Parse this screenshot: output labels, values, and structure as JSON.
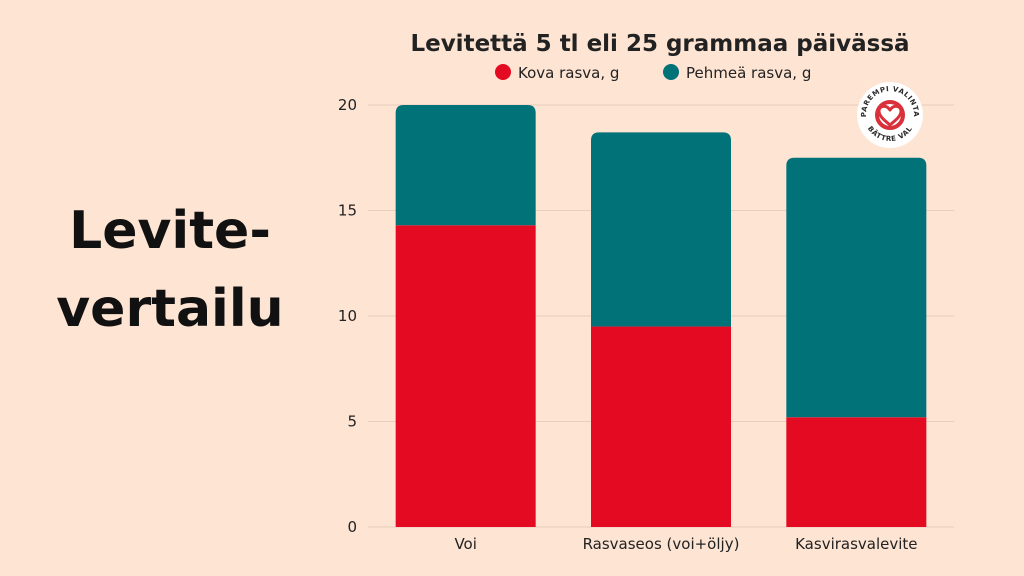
{
  "side_title": {
    "line1": "Levite-",
    "line2": "vertailu"
  },
  "logo": {
    "top_text": "PAREMPI VALINTA",
    "bottom_text": "BÄTTRE VAL",
    "icon": "heart-icon",
    "color": "#d9303c"
  },
  "colors": {
    "background": "#fde4d3",
    "hard_fat": "#e30a22",
    "soft_fat": "#007278",
    "grid": "#e9cdbd"
  },
  "chart_data": {
    "type": "bar",
    "stacked": true,
    "title": "Levitettä 5 tl eli 25 grammaa päivässä",
    "xlabel": "",
    "ylabel": "",
    "categories": [
      "Voi",
      "Rasvaseos (voi+öljy)",
      "Kasvirasvalevite"
    ],
    "series": [
      {
        "name": "Kova rasva, g",
        "color": "#e30a22",
        "values": [
          14.3,
          9.5,
          5.2
        ]
      },
      {
        "name": "Pehmeä rasva, g",
        "color": "#007278",
        "values": [
          5.7,
          9.2,
          12.3
        ]
      }
    ],
    "ylim": [
      0,
      20
    ],
    "yticks": [
      0,
      5,
      10,
      15,
      20
    ],
    "grid": true,
    "legend_position": "top"
  }
}
